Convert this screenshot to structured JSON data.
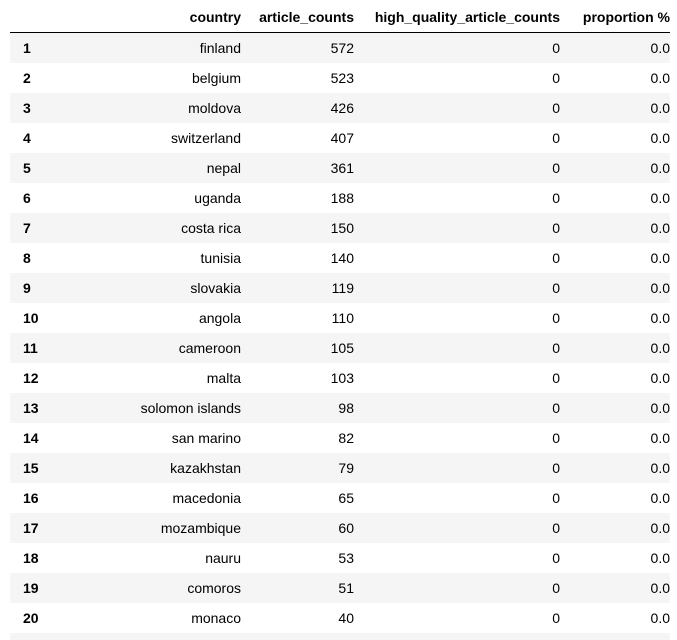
{
  "table": {
    "columns": [
      "",
      "country",
      "article_counts",
      "high_quality_article_counts",
      "proportion %"
    ],
    "rows": [
      {
        "index": "1",
        "country": "finland",
        "article_counts": "572",
        "high_quality_article_counts": "0",
        "proportion": "0.0"
      },
      {
        "index": "2",
        "country": "belgium",
        "article_counts": "523",
        "high_quality_article_counts": "0",
        "proportion": "0.0"
      },
      {
        "index": "3",
        "country": "moldova",
        "article_counts": "426",
        "high_quality_article_counts": "0",
        "proportion": "0.0"
      },
      {
        "index": "4",
        "country": "switzerland",
        "article_counts": "407",
        "high_quality_article_counts": "0",
        "proportion": "0.0"
      },
      {
        "index": "5",
        "country": "nepal",
        "article_counts": "361",
        "high_quality_article_counts": "0",
        "proportion": "0.0"
      },
      {
        "index": "6",
        "country": "uganda",
        "article_counts": "188",
        "high_quality_article_counts": "0",
        "proportion": "0.0"
      },
      {
        "index": "7",
        "country": "costa rica",
        "article_counts": "150",
        "high_quality_article_counts": "0",
        "proportion": "0.0"
      },
      {
        "index": "8",
        "country": "tunisia",
        "article_counts": "140",
        "high_quality_article_counts": "0",
        "proportion": "0.0"
      },
      {
        "index": "9",
        "country": "slovakia",
        "article_counts": "119",
        "high_quality_article_counts": "0",
        "proportion": "0.0"
      },
      {
        "index": "10",
        "country": "angola",
        "article_counts": "110",
        "high_quality_article_counts": "0",
        "proportion": "0.0"
      },
      {
        "index": "11",
        "country": "cameroon",
        "article_counts": "105",
        "high_quality_article_counts": "0",
        "proportion": "0.0"
      },
      {
        "index": "12",
        "country": "malta",
        "article_counts": "103",
        "high_quality_article_counts": "0",
        "proportion": "0.0"
      },
      {
        "index": "13",
        "country": "solomon islands",
        "article_counts": "98",
        "high_quality_article_counts": "0",
        "proportion": "0.0"
      },
      {
        "index": "14",
        "country": "san marino",
        "article_counts": "82",
        "high_quality_article_counts": "0",
        "proportion": "0.0"
      },
      {
        "index": "15",
        "country": "kazakhstan",
        "article_counts": "79",
        "high_quality_article_counts": "0",
        "proportion": "0.0"
      },
      {
        "index": "16",
        "country": "macedonia",
        "article_counts": "65",
        "high_quality_article_counts": "0",
        "proportion": "0.0"
      },
      {
        "index": "17",
        "country": "mozambique",
        "article_counts": "60",
        "high_quality_article_counts": "0",
        "proportion": "0.0"
      },
      {
        "index": "18",
        "country": "nauru",
        "article_counts": "53",
        "high_quality_article_counts": "0",
        "proportion": "0.0"
      },
      {
        "index": "19",
        "country": "comoros",
        "article_counts": "51",
        "high_quality_article_counts": "0",
        "proportion": "0.0"
      },
      {
        "index": "20",
        "country": "monaco",
        "article_counts": "40",
        "high_quality_article_counts": "0",
        "proportion": "0.0"
      },
      {
        "index": "",
        "country": "",
        "article_counts": "",
        "high_quality_article_counts": "",
        "proportion": ""
      }
    ]
  }
}
